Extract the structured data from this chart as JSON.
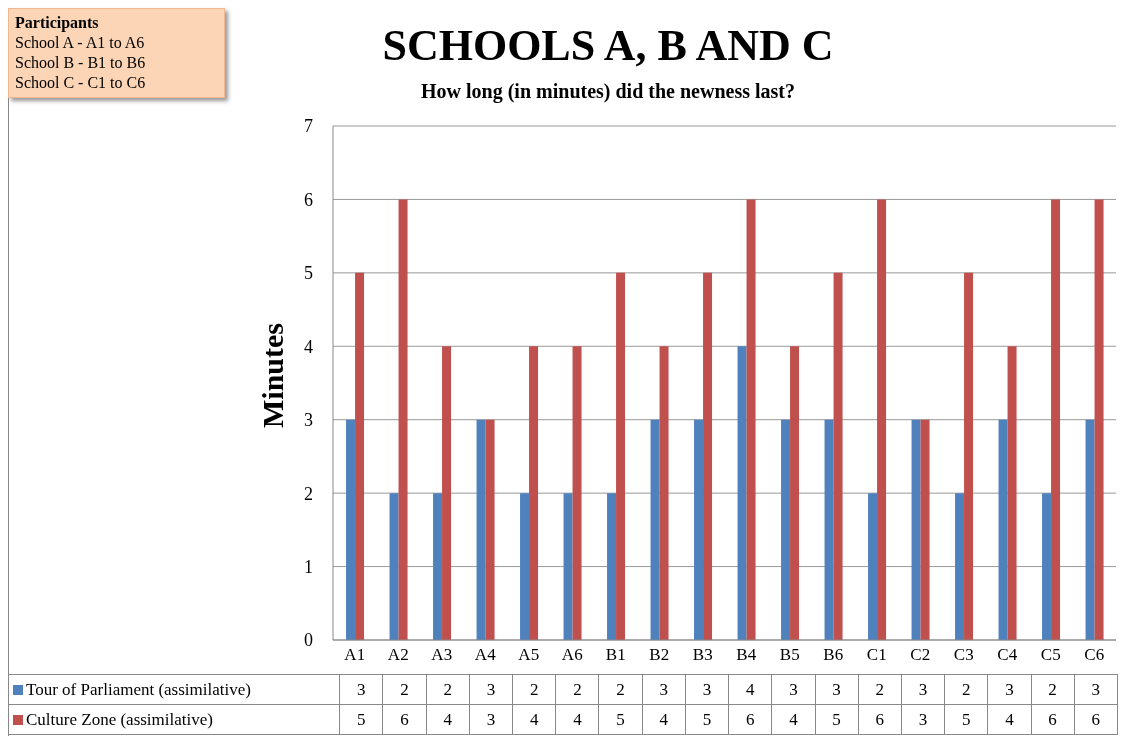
{
  "chart_data": {
    "type": "bar",
    "title": "SCHOOLS A, B AND C",
    "subtitle": "How long (in minutes) did the newness last?",
    "ylabel": "Minutes",
    "annotations": [
      "Participants",
      "School A - A1 to A6",
      "School B - B1 to B6",
      "School C - C1 to C6"
    ],
    "categories": [
      "A1",
      "A2",
      "A3",
      "A4",
      "A5",
      "A6",
      "B1",
      "B2",
      "B3",
      "B4",
      "B5",
      "B6",
      "C1",
      "C2",
      "C3",
      "C4",
      "C5",
      "C6"
    ],
    "series": [
      {
        "name": "Tour of Parliament (assimilative)",
        "color": "#4f81bd",
        "values": [
          3,
          2,
          2,
          3,
          2,
          2,
          2,
          3,
          3,
          4,
          3,
          3,
          2,
          3,
          2,
          3,
          2,
          3
        ]
      },
      {
        "name": "Culture Zone (assimilative)",
        "color": "#c0504d",
        "values": [
          5,
          6,
          4,
          3,
          4,
          4,
          5,
          4,
          5,
          6,
          4,
          5,
          6,
          3,
          5,
          4,
          6,
          6
        ]
      }
    ],
    "ylim": [
      0,
      7
    ],
    "yticks": [
      0,
      1,
      2,
      3,
      4,
      5,
      6,
      7
    ],
    "grid": "y",
    "legend": "bottom",
    "data_labels": true
  }
}
